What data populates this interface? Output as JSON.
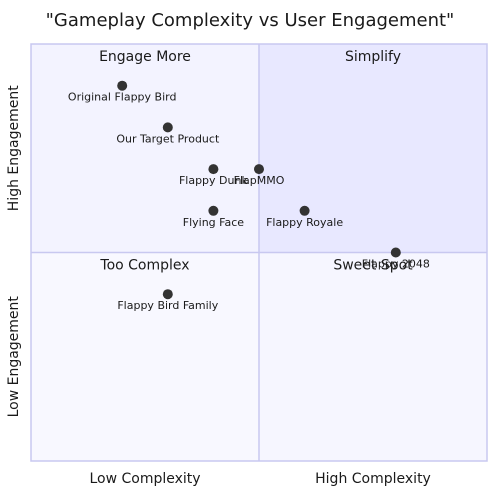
{
  "chart_data": {
    "type": "scatter",
    "title": "\"Gameplay Complexity vs User Engagement\"",
    "x_axis": {
      "low_label": "Low Complexity",
      "high_label": "High Complexity",
      "range": [
        0,
        1
      ]
    },
    "y_axis": {
      "low_label": "Low Engagement",
      "high_label": "High Engagement",
      "range": [
        0,
        1
      ]
    },
    "quadrants": [
      {
        "id": "top-left",
        "label": "Engage More",
        "color": "#f3f3ff"
      },
      {
        "id": "top-right",
        "label": "Simplify",
        "color": "#e8e8ff"
      },
      {
        "id": "bottom-left",
        "label": "Too Complex",
        "color": "#f8f8ff"
      },
      {
        "id": "bottom-right",
        "label": "Sweet Spot",
        "color": "#f6f6ff"
      }
    ],
    "points": [
      {
        "label": "Original Flappy Bird",
        "x": 0.2,
        "y": 0.9
      },
      {
        "label": "Our Target Product",
        "x": 0.3,
        "y": 0.8
      },
      {
        "label": "Flappy Dunk",
        "x": 0.4,
        "y": 0.7
      },
      {
        "label": "FlapMMO",
        "x": 0.5,
        "y": 0.7
      },
      {
        "label": "Flying Face",
        "x": 0.4,
        "y": 0.6
      },
      {
        "label": "Flappy Royale",
        "x": 0.6,
        "y": 0.6
      },
      {
        "label": "Flappy 2048",
        "x": 0.8,
        "y": 0.5
      },
      {
        "label": "Flappy Bird Family",
        "x": 0.3,
        "y": 0.4
      }
    ],
    "point_color": "#333333",
    "border_color": "#c8c8f0"
  }
}
